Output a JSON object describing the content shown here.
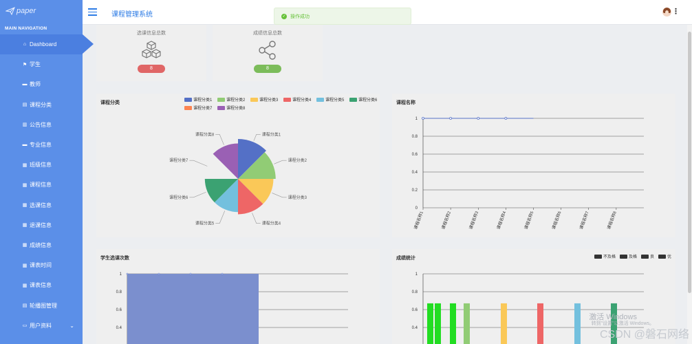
{
  "app": {
    "logo_text": "paper",
    "title": "课程管理系统"
  },
  "toast": {
    "message": "操作成功"
  },
  "sidebar": {
    "header": "MAIN NAVIGATION",
    "items": [
      {
        "label": "Dashboard",
        "icon": "home-icon",
        "active": true
      },
      {
        "label": "学生",
        "icon": "flag-icon"
      },
      {
        "label": "教师",
        "icon": "message-icon"
      },
      {
        "label": "课程分类",
        "icon": "document-icon"
      },
      {
        "label": "公告信息",
        "icon": "chart-icon"
      },
      {
        "label": "专业信息",
        "icon": "message-icon"
      },
      {
        "label": "班级信息",
        "icon": "grid-icon"
      },
      {
        "label": "课程信息",
        "icon": "grid-icon"
      },
      {
        "label": "选课信息",
        "icon": "grid-icon"
      },
      {
        "label": "退课信息",
        "icon": "grid-icon"
      },
      {
        "label": "成绩信息",
        "icon": "grid-icon"
      },
      {
        "label": "课表时间",
        "icon": "grid-icon"
      },
      {
        "label": "课表信息",
        "icon": "grid-icon"
      },
      {
        "label": "轮播图管理",
        "icon": "document-icon"
      },
      {
        "label": "用户资料",
        "icon": "monitor-icon",
        "expandable": true
      }
    ]
  },
  "stats": [
    {
      "label": "选课信息总数",
      "value": "8",
      "icon": "cubes-icon",
      "pill_color": "#e06666"
    },
    {
      "label": "成绩信息总数",
      "value": "8",
      "icon": "share-icon",
      "pill_color": "#7cbc5a"
    }
  ],
  "panels": {
    "pie_title": "课程分类",
    "line_title": "课程名称",
    "bar_title": "学生选课次数",
    "grade_title": "成绩统计"
  },
  "chart_data": [
    {
      "type": "pie",
      "title": "课程分类",
      "rose": true,
      "categories": [
        "课程分类1",
        "课程分类2",
        "课程分类3",
        "课程分类4",
        "课程分类5",
        "课程分类6",
        "课程分类7",
        "课程分类8"
      ],
      "values": [
        8,
        7,
        6,
        6,
        5,
        5,
        0,
        6
      ],
      "colors": [
        "#5470c6",
        "#91cc75",
        "#fac858",
        "#ee6666",
        "#73c0de",
        "#3ba272",
        "#fc8452",
        "#9a60b4"
      ],
      "legend": "top"
    },
    {
      "type": "line",
      "title": "课程名称",
      "categories": [
        "课程名称1",
        "课程名称2",
        "课程名称3",
        "课程名称4",
        "课程名称5",
        "课程名称6",
        "课程名称7",
        "课程名称8"
      ],
      "y_ticks": [
        "0",
        "0.2",
        "0.4",
        "0.6",
        "0.8",
        "1"
      ],
      "series": [
        {
          "values": [
            1,
            1,
            1,
            1,
            null,
            null,
            null,
            null
          ],
          "color": "#5470c6"
        }
      ],
      "ylim": [
        0,
        1
      ]
    },
    {
      "type": "bar",
      "title": "学生选课次数",
      "y_ticks": [
        "0.4",
        "0.6",
        "0.8",
        "1"
      ],
      "series": [
        {
          "values": [
            1
          ],
          "color": "#7b8fce"
        }
      ],
      "ylim": [
        0,
        1
      ]
    },
    {
      "type": "bar",
      "title": "成绩统计",
      "legend_labels": [
        "不及格",
        "及格",
        "良",
        "优"
      ],
      "y_ticks": [
        "0.4",
        "0.6",
        "0.8",
        "1"
      ],
      "bars": [
        {
          "value": 0.67,
          "color": "#22dd22"
        },
        {
          "value": 0.67,
          "color": "#22dd22"
        },
        {
          "value": 0.67,
          "color": "#22dd22"
        },
        {
          "value": 0.67,
          "color": "#91cc75"
        },
        {
          "value": 0.67,
          "color": "#fac858"
        },
        {
          "value": 0.67,
          "color": "#ee6666"
        },
        {
          "value": 0.67,
          "color": "#73c0de"
        },
        {
          "value": 0.67,
          "color": "#3ba272"
        }
      ],
      "ylim": [
        0,
        1
      ]
    }
  ],
  "watermark": {
    "line1": "激活 Windows",
    "line2": "转到\"设置\"以激活 Windows。",
    "line3": "CSDN @磐石网络"
  }
}
